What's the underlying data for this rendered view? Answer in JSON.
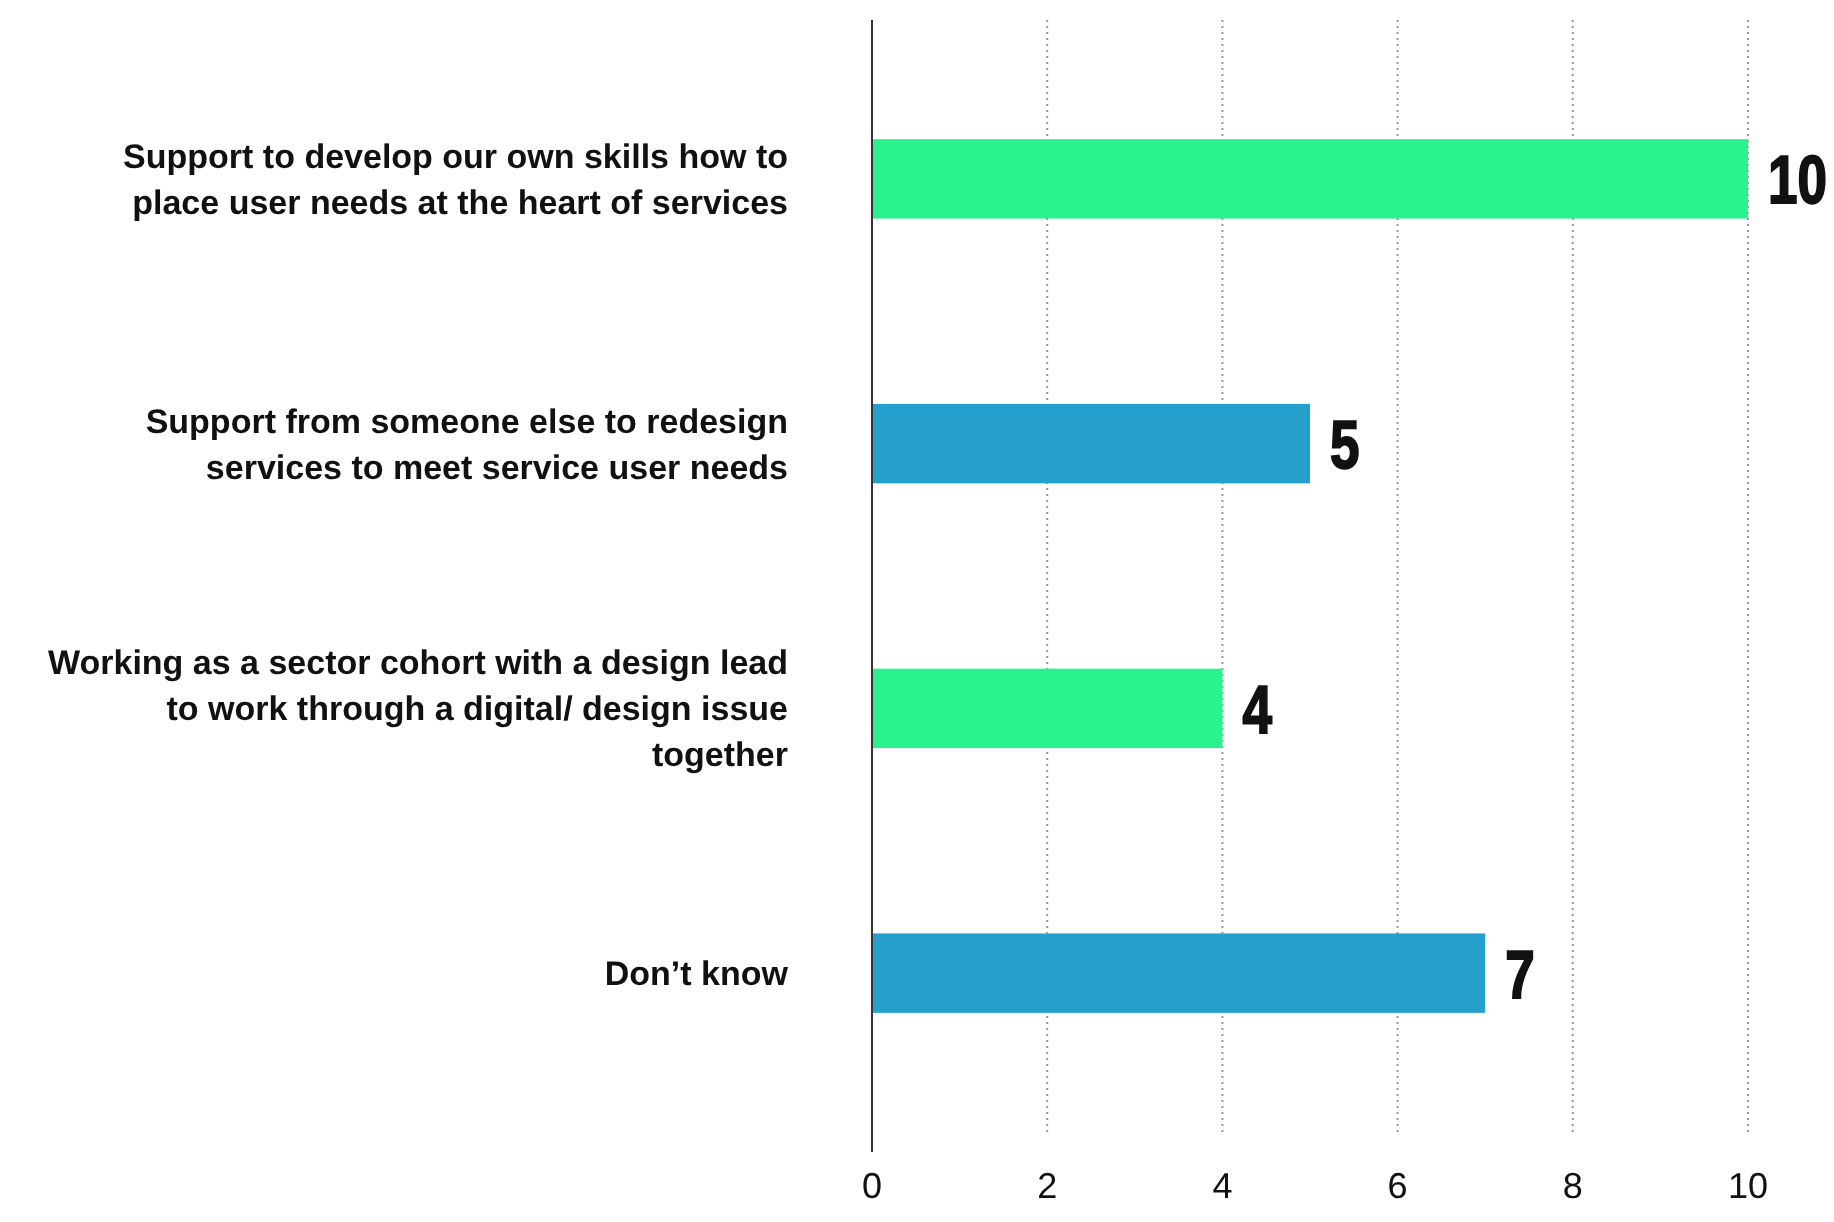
{
  "chart_data": {
    "type": "bar",
    "orientation": "horizontal",
    "categories": [
      "Support to develop our own skills how to place user needs at the heart of services",
      "Support from someone else to redesign services to meet service user needs",
      "Working as a sector cohort with a design lead to work through a digital/ design issue together",
      "Don’t know"
    ],
    "values": [
      10,
      5,
      4,
      7
    ],
    "colors": [
      "#2af28e",
      "#259fcc",
      "#2af28e",
      "#259fcc"
    ],
    "xlim": [
      0,
      10
    ],
    "xticks": [
      0,
      2,
      4,
      6,
      8,
      10
    ],
    "grid": "x",
    "data_labels": true
  }
}
